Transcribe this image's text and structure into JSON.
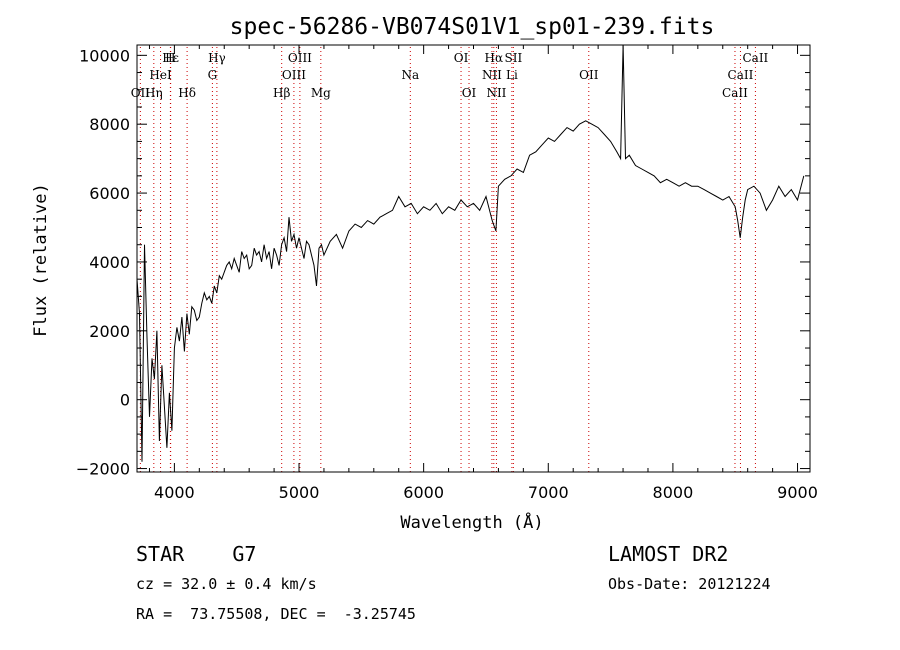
{
  "chart_data": {
    "type": "line",
    "title": "spec-56286-VB074S01V1_sp01-239.fits",
    "xlabel": "Wavelength (Å)",
    "ylabel": "Flux (relative)",
    "xlim": [
      3700,
      9100
    ],
    "ylim": [
      -2100,
      10300
    ],
    "xticks": [
      4000,
      5000,
      6000,
      7000,
      8000,
      9000
    ],
    "yticks": [
      -2000,
      0,
      2000,
      4000,
      6000,
      8000,
      10000
    ],
    "grid": false,
    "lines": [
      {
        "label": "Hε",
        "x": 3970,
        "row": 1
      },
      {
        "label": "H",
        "x": 3968,
        "row": 1
      },
      {
        "label": "HeI",
        "x": 3889,
        "row": 2
      },
      {
        "label": "OII",
        "x": 3727,
        "row": 3
      },
      {
        "label": "Hη",
        "x": 3835,
        "row": 3
      },
      {
        "label": "Hδ",
        "x": 4102,
        "row": 3
      },
      {
        "label": "Hγ",
        "x": 4341,
        "row": 1
      },
      {
        "label": "G",
        "x": 4305,
        "row": 2
      },
      {
        "label": "Hβ",
        "x": 4861,
        "row": 3
      },
      {
        "label": "OIII",
        "x": 5007,
        "row": 1
      },
      {
        "label": "OIII",
        "x": 4959,
        "row": 2
      },
      {
        "label": "Mg",
        "x": 5175,
        "row": 3
      },
      {
        "label": "Na",
        "x": 5893,
        "row": 2
      },
      {
        "label": "OI",
        "x": 6300,
        "row": 1
      },
      {
        "label": "OI",
        "x": 6364,
        "row": 3
      },
      {
        "label": "Hα",
        "x": 6563,
        "row": 1
      },
      {
        "label": "SII",
        "x": 6720,
        "row": 1
      },
      {
        "label": "NII",
        "x": 6548,
        "row": 2
      },
      {
        "label": "Li",
        "x": 6708,
        "row": 2
      },
      {
        "label": "NII",
        "x": 6584,
        "row": 3
      },
      {
        "label": "OII",
        "x": 7325,
        "row": 2
      },
      {
        "label": "CaII",
        "x": 8662,
        "row": 1
      },
      {
        "label": "CaII",
        "x": 8542,
        "row": 2
      },
      {
        "label": "CaII",
        "x": 8498,
        "row": 3
      }
    ],
    "series": [
      {
        "x": [
          3700,
          3720,
          3740,
          3760,
          3780,
          3800,
          3820,
          3840,
          3860,
          3880,
          3900,
          3920,
          3940,
          3960,
          3980,
          4000,
          4020,
          4040,
          4060,
          4080,
          4100,
          4120,
          4140,
          4160,
          4180,
          4200,
          4220,
          4240,
          4260,
          4280,
          4300,
          4320,
          4340,
          4360,
          4380,
          4400,
          4420,
          4440,
          4460,
          4480,
          4500,
          4520,
          4540,
          4560,
          4580,
          4600,
          4620,
          4640,
          4660,
          4680,
          4700,
          4720,
          4740,
          4760,
          4780,
          4800,
          4820,
          4840,
          4860,
          4880,
          4900,
          4920,
          4940,
          4960,
          4980,
          5000,
          5020,
          5040,
          5060,
          5080,
          5100,
          5120,
          5140,
          5160,
          5180,
          5200,
          5250,
          5300,
          5350,
          5400,
          5450,
          5500,
          5550,
          5600,
          5650,
          5700,
          5750,
          5800,
          5850,
          5900,
          5950,
          6000,
          6050,
          6100,
          6150,
          6200,
          6250,
          6300,
          6350,
          6400,
          6450,
          6500,
          6550,
          6580,
          6600,
          6650,
          6700,
          6750,
          6800,
          6850,
          6900,
          6950,
          7000,
          7050,
          7100,
          7150,
          7200,
          7250,
          7300,
          7350,
          7400,
          7450,
          7500,
          7550,
          7580,
          7600,
          7620,
          7650,
          7700,
          7750,
          7800,
          7850,
          7900,
          7950,
          8000,
          8050,
          8100,
          8150,
          8200,
          8250,
          8300,
          8350,
          8400,
          8450,
          8500,
          8520,
          8540,
          8560,
          8580,
          8600,
          8650,
          8700,
          8750,
          8800,
          8850,
          8900,
          8950,
          9000,
          9050
        ],
        "y": [
          3500,
          2500,
          -1800,
          4500,
          1800,
          -500,
          1200,
          600,
          2000,
          -1200,
          1000,
          -200,
          -1400,
          200,
          -900,
          1500,
          2100,
          1700,
          2400,
          1400,
          2500,
          1900,
          2700,
          2600,
          2300,
          2400,
          2800,
          3100,
          2900,
          3000,
          2800,
          3300,
          3100,
          3600,
          3500,
          3700,
          3900,
          4000,
          3800,
          4100,
          3900,
          3700,
          4300,
          4100,
          4200,
          3800,
          3900,
          4400,
          4200,
          4300,
          4000,
          4500,
          4100,
          4300,
          3800,
          4400,
          4200,
          3900,
          4500,
          4700,
          4300,
          5300,
          4600,
          4800,
          4400,
          4700,
          4400,
          4100,
          4600,
          4500,
          4200,
          3900,
          3300,
          4400,
          4500,
          4200,
          4600,
          4800,
          4400,
          4900,
          5100,
          5000,
          5200,
          5100,
          5300,
          5400,
          5500,
          5900,
          5600,
          5700,
          5400,
          5600,
          5500,
          5700,
          5400,
          5600,
          5500,
          5800,
          5600,
          5700,
          5500,
          5900,
          5200,
          4900,
          6200,
          6400,
          6500,
          6700,
          6600,
          7100,
          7200,
          7400,
          7600,
          7500,
          7700,
          7900,
          7800,
          8000,
          8100,
          8000,
          7900,
          7700,
          7500,
          7200,
          7000,
          10300,
          7000,
          7100,
          6800,
          6700,
          6600,
          6500,
          6300,
          6400,
          6300,
          6200,
          6300,
          6200,
          6200,
          6100,
          6000,
          5900,
          5800,
          5900,
          5600,
          5200,
          4700,
          5300,
          5800,
          6100,
          6200,
          6000,
          5500,
          5800,
          6200,
          5900,
          6100,
          5800,
          6500
        ]
      }
    ],
    "info": {
      "object": "STAR    G7",
      "cz": "cz = 32.0 ± 0.4 km/s",
      "radec": "RA =  73.75508, DEC =  -3.25745",
      "survey": "LAMOST DR2",
      "obsdate": "Obs-Date: 20121224"
    }
  }
}
